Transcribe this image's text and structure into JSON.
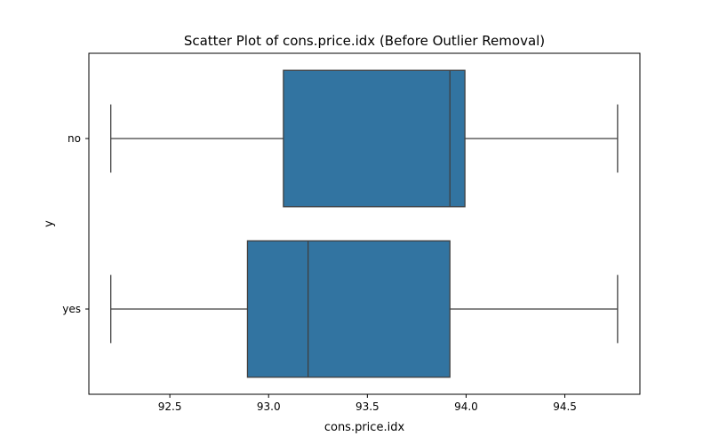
{
  "chart_data": {
    "type": "boxplot",
    "orientation": "horizontal",
    "title": "Scatter Plot of cons.price.idx (Before Outlier Removal)",
    "xlabel": "cons.price.idx",
    "ylabel": "y",
    "xlim": [
      92.09,
      94.88
    ],
    "xticks": [
      "92.5",
      "93.0",
      "93.5",
      "94.0",
      "94.5"
    ],
    "xtick_values": [
      92.5,
      93.0,
      93.5,
      94.0,
      94.5
    ],
    "categories": [
      "no",
      "yes"
    ],
    "boxes": [
      {
        "category": "no",
        "whisker_low": 92.201,
        "q1": 93.075,
        "median": 93.918,
        "q3": 93.994,
        "whisker_high": 94.767
      },
      {
        "category": "yes",
        "whisker_low": 92.201,
        "q1": 92.893,
        "median": 93.2,
        "q3": 93.918,
        "whisker_high": 94.767
      }
    ],
    "grid": false,
    "colors": {
      "box_fill": "#3274a1",
      "line": "#3f3f3f",
      "axes": "#000000"
    }
  }
}
